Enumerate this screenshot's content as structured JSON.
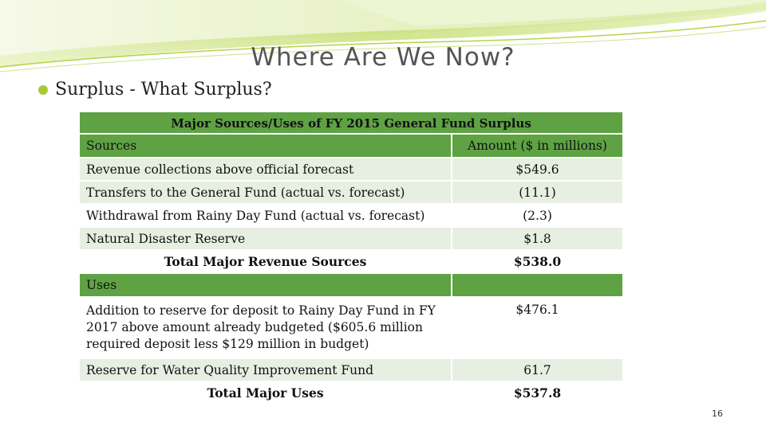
{
  "slide": {
    "title": "Where Are We Now?",
    "bullet": "Surplus - What Surplus?",
    "page_number": "16",
    "accent_colors": {
      "header_green": "#5fa244",
      "row_light": "#e6efe1",
      "swoosh": "#b5d44a",
      "bullet": "#a9c93a"
    }
  },
  "table": {
    "caption": "Major Sources/Uses of FY 2015 General Fund Surplus",
    "header": {
      "left": "Sources",
      "right": "Amount ($ in millions)"
    },
    "sources": [
      {
        "label": "Revenue collections above official forecast",
        "amount": "$549.6"
      },
      {
        "label": "Transfers to the General Fund (actual vs. forecast)",
        "amount": "(11.1)"
      },
      {
        "label": "Withdrawal from Rainy Day Fund (actual vs. forecast)",
        "amount": "(2.3)"
      },
      {
        "label": "Natural Disaster Reserve",
        "amount": "$1.8"
      }
    ],
    "sources_total": {
      "label": "Total Major Revenue Sources",
      "amount": "$538.0"
    },
    "uses_header": "Uses",
    "uses": [
      {
        "label": "Addition to reserve for deposit to Rainy Day Fund in FY 2017 above amount already budgeted ($605.6 million required deposit less $129 million in budget)",
        "amount": "$476.1"
      },
      {
        "label": "Reserve for Water Quality Improvement Fund",
        "amount": "61.7"
      }
    ],
    "uses_total": {
      "label": "Total Major Uses",
      "amount": "$537.8"
    }
  }
}
